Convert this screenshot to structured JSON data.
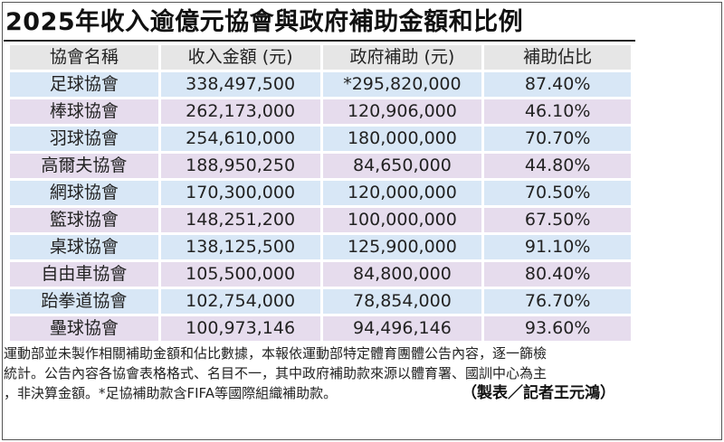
{
  "title": "2025年收入逾億元協會與政府補助金額和比例",
  "table": {
    "headers": [
      "協會名稱",
      "收入金額 (元)",
      "政府補助 (元)",
      "補助佔比"
    ],
    "rows": [
      [
        "足球協會",
        "338,497,500",
        "*295,820,000",
        "87.40%"
      ],
      [
        "棒球協會",
        "262,173,000",
        "120,906,000",
        "46.10%"
      ],
      [
        "羽球協會",
        "254,610,000",
        "180,000,000",
        "70.70%"
      ],
      [
        "高爾夫協會",
        "188,950,250",
        "84,650,000",
        "44.80%"
      ],
      [
        "網球協會",
        "170,300,000",
        "120,000,000",
        "70.50%"
      ],
      [
        "籃球協會",
        "148,251,200",
        "100,000,000",
        "67.50%"
      ],
      [
        "桌球協會",
        "138,125,500",
        "125,900,000",
        "91.10%"
      ],
      [
        "自由車協會",
        "105,500,000",
        "84,800,000",
        "80.40%"
      ],
      [
        "跆拳道協會",
        "102,754,000",
        "78,854,000",
        "76.70%"
      ],
      [
        "壘球協會",
        "100,973,146",
        "94,496,146",
        "93.60%"
      ]
    ]
  },
  "notes": [
    "運動部並未製作相關補助金額和佔比數據，本報依運動部特定體育團體公告內容，逐一篩檢",
    "統計。公告內容各協會表格格式、名目不一，其中政府補助款來源以體育署、國訓中心為主",
    "，非決算金額。*足協補助款含FIFA等國際組織補助款。"
  ],
  "credit": "（製表／記者王元鴻）"
}
